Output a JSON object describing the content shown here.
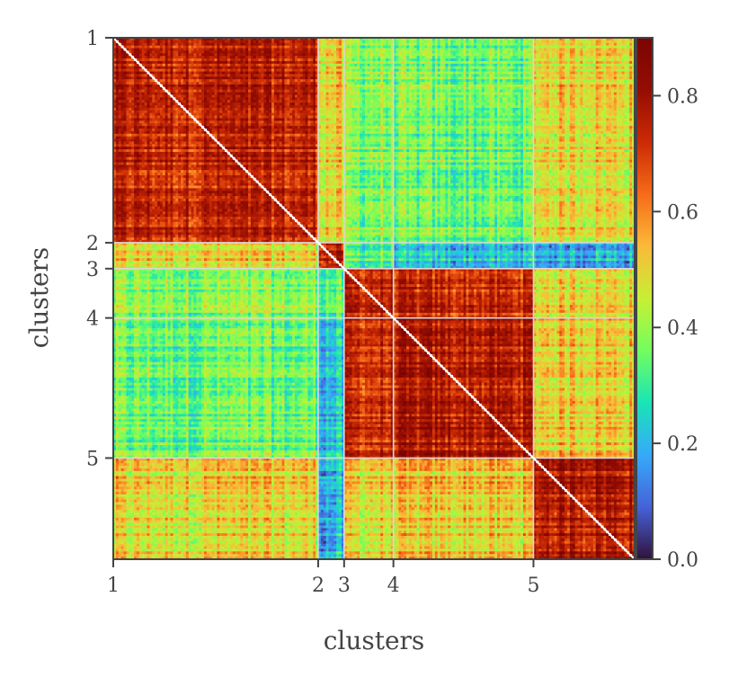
{
  "chart_data": {
    "type": "heatmap",
    "title": "",
    "xlabel": "clusters",
    "ylabel": "clusters",
    "colormap": "turbo",
    "cluster_labels": [
      "1",
      "2",
      "3",
      "4",
      "5"
    ],
    "cluster_sizes": [
      79,
      10,
      19,
      54,
      39
    ],
    "n_items": 201,
    "block_mean_values": [
      [
        0.74,
        0.5,
        0.38,
        0.35,
        0.5
      ],
      [
        0.5,
        0.76,
        0.33,
        0.22,
        0.2
      ],
      [
        0.38,
        0.33,
        0.74,
        0.72,
        0.5
      ],
      [
        0.35,
        0.22,
        0.72,
        0.76,
        0.52
      ],
      [
        0.5,
        0.2,
        0.5,
        0.52,
        0.78
      ]
    ],
    "diagonal_value": 1.0,
    "grid": true,
    "colorbar": {
      "label": "",
      "range": [
        0.0,
        0.9
      ],
      "ticks": [
        0.0,
        0.2,
        0.4,
        0.6,
        0.8
      ],
      "tick_labels": [
        "0.0",
        "0.2",
        "0.4",
        "0.6",
        "0.8"
      ]
    }
  }
}
